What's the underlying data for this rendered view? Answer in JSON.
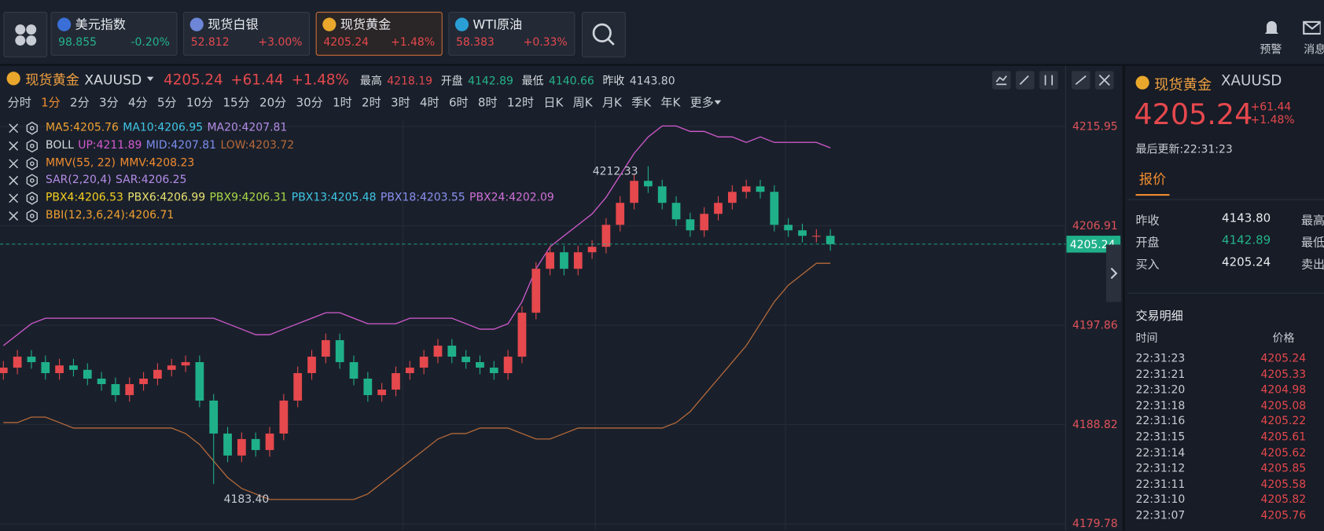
{
  "tickers": [
    {
      "name": "美元指数",
      "price": "98.855",
      "change": "-0.20%",
      "color": "#25b28a",
      "icon": "#3a6fd8"
    },
    {
      "name": "现货白银",
      "price": "52.812",
      "change": "+3.00%",
      "color": "#e5484d",
      "icon": "#6d86d8"
    },
    {
      "name": "现货黄金",
      "price": "4205.24",
      "change": "+1.48%",
      "color": "#e5484d",
      "icon": "#e9a72c",
      "active": true
    },
    {
      "name": "WTI原油",
      "price": "58.383",
      "change": "+0.33%",
      "color": "#e5484d",
      "icon": "#2a9fd6"
    }
  ],
  "toolbar": [
    "预警",
    "消息"
  ],
  "header": {
    "name": "现货黄金",
    "symbol": "XAUUSD",
    "price": "4205.24",
    "change": "+61.44",
    "change_pct": "+1.48%",
    "stats": [
      {
        "label": "最高",
        "value": "4218.19",
        "color": "#e5484d"
      },
      {
        "label": "开盘",
        "value": "4142.89",
        "color": "#25b28a"
      },
      {
        "label": "最低",
        "value": "4140.66",
        "color": "#25b28a"
      },
      {
        "label": "昨收",
        "value": "4143.80",
        "color": "#c8ccd4"
      }
    ]
  },
  "periods": [
    "分时",
    "1分",
    "2分",
    "3分",
    "4分",
    "5分",
    "10分",
    "15分",
    "20分",
    "30分",
    "1时",
    "2时",
    "3时",
    "4时",
    "6时",
    "8时",
    "12时",
    "日K",
    "周K",
    "月K",
    "季K",
    "年K",
    "更多"
  ],
  "active_period": 1,
  "indicators": [
    [
      {
        "text": "MA5:4205.76",
        "color": "#f0a030"
      },
      {
        "text": "MA10:4206.95",
        "color": "#3ec6e6"
      },
      {
        "text": "MA20:4207.81",
        "color": "#b48ce8"
      }
    ],
    [
      {
        "text": "BOLL",
        "color": "#d8dbe0"
      },
      {
        "text": "UP:4211.89",
        "color": "#d35ad0"
      },
      {
        "text": "MID:4207.81",
        "color": "#7c8ef0"
      },
      {
        "text": "LOW:4203.72",
        "color": "#b5693a"
      }
    ],
    [
      {
        "text": "MMV(55, 22)",
        "color": "#f08c30"
      },
      {
        "text": "MMV:4208.23",
        "color": "#f08c30"
      }
    ],
    [
      {
        "text": "SAR(2,20,4)",
        "color": "#b48ce8"
      },
      {
        "text": "SAR:4206.25",
        "color": "#b48ce8"
      }
    ],
    [
      {
        "text": "PBX4:4206.53",
        "color": "#f5d020"
      },
      {
        "text": "PBX6:4206.99",
        "color": "#e8e070"
      },
      {
        "text": "PBX9:4206.31",
        "color": "#a8d848"
      },
      {
        "text": "PBX13:4205.48",
        "color": "#3ec6e6"
      },
      {
        "text": "PBX18:4203.55",
        "color": "#8a90f0"
      },
      {
        "text": "PBX24:4202.09",
        "color": "#d070d8"
      }
    ],
    [
      {
        "text": "BBI(12,3,6,24):4206.71",
        "color": "#f0a030"
      }
    ]
  ],
  "chart_data": {
    "type": "candlestick",
    "open": [
      4193.5,
      4194,
      4195,
      4194.5,
      4193.5,
      4194.2,
      4193.8,
      4193,
      4192.5,
      4191.5,
      4192.5,
      4193,
      4193.8,
      4194.2,
      4194.5,
      4191,
      4188,
      4186,
      4187.5,
      4186.5,
      4188,
      4191,
      4193.5,
      4195,
      4196.5,
      4194.5,
      4193,
      4191.5,
      4192,
      4193.5,
      4194,
      4195,
      4196,
      4195,
      4194.5,
      4194,
      4193.5,
      4195,
      4199,
      4203,
      4204.5,
      4203,
      4204.5,
      4205,
      4207,
      4209,
      4211,
      4210.5,
      4209,
      4207.5,
      4206.5,
      4208,
      4209,
      4210,
      4210.5,
      4210,
      4207,
      4206.5,
      4206,
      4206
    ],
    "high": [
      4194.6,
      4195.6,
      4195.6,
      4195.1,
      4194.8,
      4194.8,
      4194.4,
      4193.6,
      4193.1,
      4193.1,
      4193.6,
      4194.4,
      4194.8,
      4195.1,
      4195.1,
      4191.6,
      4188.6,
      4188.1,
      4188.1,
      4188.6,
      4191.6,
      4194.1,
      4195.6,
      4197.1,
      4197.1,
      4195.1,
      4193.6,
      4192.6,
      4194.1,
      4194.6,
      4195.6,
      4196.6,
      4196.6,
      4195.6,
      4195.1,
      4194.6,
      4195.6,
      4199.6,
      4203.6,
      4205.1,
      4205.1,
      4205.1,
      4205.6,
      4207.6,
      4209.6,
      4211.6,
      4212.33,
      4211.1,
      4209.6,
      4208.1,
      4208.6,
      4209.6,
      4210.6,
      4211.1,
      4211.1,
      4210.6,
      4207.6,
      4207.1,
      4206.6,
      4206.6
    ],
    "low": [
      4192.9,
      4193.4,
      4193.9,
      4192.9,
      4192.9,
      4193.2,
      4192.4,
      4191.9,
      4190.9,
      4190.9,
      4191.9,
      4192.4,
      4193.2,
      4193.6,
      4190.4,
      4183.4,
      4185.4,
      4185.4,
      4185.9,
      4185.9,
      4187.4,
      4190.4,
      4192.9,
      4194.4,
      4193.9,
      4192.4,
      4190.9,
      4190.9,
      4191.4,
      4192.9,
      4193.4,
      4194.4,
      4194.4,
      4193.9,
      4193.4,
      4192.9,
      4192.9,
      4194.4,
      4198.4,
      4202.4,
      4202.4,
      4202.4,
      4203.9,
      4204.4,
      4206.4,
      4208.4,
      4209.9,
      4208.4,
      4206.9,
      4205.9,
      4205.9,
      4207.4,
      4208.4,
      4209.4,
      4209.4,
      4206.4,
      4205.9,
      4205.4,
      4205.4,
      4204.64
    ],
    "close": [
      4194,
      4195,
      4194.5,
      4193.5,
      4194.2,
      4193.8,
      4193,
      4192.5,
      4191.5,
      4192.5,
      4193,
      4193.8,
      4194.2,
      4194.5,
      4191,
      4188,
      4186,
      4187.5,
      4186.5,
      4188,
      4191,
      4193.5,
      4195,
      4196.5,
      4194.5,
      4193,
      4191.5,
      4192,
      4193.5,
      4194,
      4195,
      4196,
      4195,
      4194.5,
      4194,
      4193.5,
      4195,
      4199,
      4203,
      4204.5,
      4203,
      4204.5,
      4205,
      4207,
      4209,
      4211,
      4210.5,
      4209,
      4207.5,
      4206.5,
      4208,
      4209,
      4210,
      4210.5,
      4210,
      4207,
      4206.5,
      4206,
      4206,
      4205.24
    ],
    "up_color": "#e5484d",
    "down_color": "#1fb08a",
    "overlays": [
      {
        "color": "#d35ad0",
        "values": [
          4196,
          4197,
          4198,
          4198.5,
          4198.5,
          4198.5,
          4198.5,
          4198.5,
          4198.5,
          4198.5,
          4198.5,
          4198.5,
          4198.5,
          4198.5,
          4198.5,
          4198.5,
          4198,
          4197.5,
          4197,
          4197,
          4197.5,
          4198,
          4198.5,
          4199,
          4199,
          4198.5,
          4198,
          4198,
          4198,
          4198.5,
          4198.5,
          4198.5,
          4198.5,
          4198,
          4197.5,
          4197.5,
          4198,
          4200,
          4203,
          4205,
          4206,
          4207,
          4208,
          4209.5,
          4211.5,
          4213.5,
          4215,
          4216,
          4216,
          4215.5,
          4215.5,
          4215,
          4215,
          4214.5,
          4215,
          4214.5,
          4214.5,
          4214.5,
          4214.5,
          4214
        ]
      },
      {
        "color": "#b5693a",
        "values": [
          4189,
          4189,
          4189.5,
          4189.5,
          4189,
          4188.5,
          4188.5,
          4188.5,
          4188.5,
          4188.5,
          4188.5,
          4188.5,
          4188.5,
          4188,
          4187,
          4185.5,
          4184,
          4183,
          4182.5,
          4182,
          4182,
          4182,
          4182,
          4182,
          4182,
          4182,
          4182.5,
          4183.5,
          4184.5,
          4185.5,
          4186.5,
          4187.5,
          4188,
          4188,
          4188.5,
          4188.5,
          4188.5,
          4188,
          4187.5,
          4187.5,
          4188,
          4188.5,
          4188.5,
          4188.5,
          4188.5,
          4188.5,
          4188.5,
          4188.5,
          4189,
          4190,
          4191.5,
          4193,
          4194.5,
          4196,
          4198,
          4200,
          4201.5,
          4202.5,
          4203.5,
          4203.5
        ]
      }
    ],
    "ylim": [
      4179.24,
      4216.56
    ],
    "yticks": [
      4215.95,
      4206.91,
      4197.86,
      4188.82,
      4179.78
    ],
    "grid": true,
    "last_price": 4205.24,
    "annotations": [
      "4212.33",
      "4183.40"
    ]
  },
  "quote_panel": {
    "name": "现货黄金",
    "symbol": "XAUUSD",
    "price": "4205.24",
    "change": "+61.44",
    "change_pct": "+1.48%",
    "updated": "最后更新:22:31:23",
    "tab": "报价",
    "rows": [
      [
        "昨收",
        "4143.80",
        "最高"
      ],
      [
        "开盘",
        "4142.89",
        "最低"
      ],
      [
        "买入",
        "4205.24",
        "卖出"
      ]
    ],
    "trades_title": "交易明细",
    "trades_header": [
      "时间",
      "价格"
    ],
    "trades": [
      [
        "22:31:23",
        "4205.24"
      ],
      [
        "22:31:21",
        "4205.33"
      ],
      [
        "22:31:20",
        "4204.98"
      ],
      [
        "22:31:18",
        "4205.08"
      ],
      [
        "22:31:16",
        "4205.22"
      ],
      [
        "22:31:15",
        "4205.61"
      ],
      [
        "22:31:14",
        "4205.62"
      ],
      [
        "22:31:12",
        "4205.85"
      ],
      [
        "22:31:11",
        "4205.58"
      ],
      [
        "22:31:10",
        "4205.82"
      ],
      [
        "22:31:07",
        "4205.76"
      ]
    ]
  }
}
